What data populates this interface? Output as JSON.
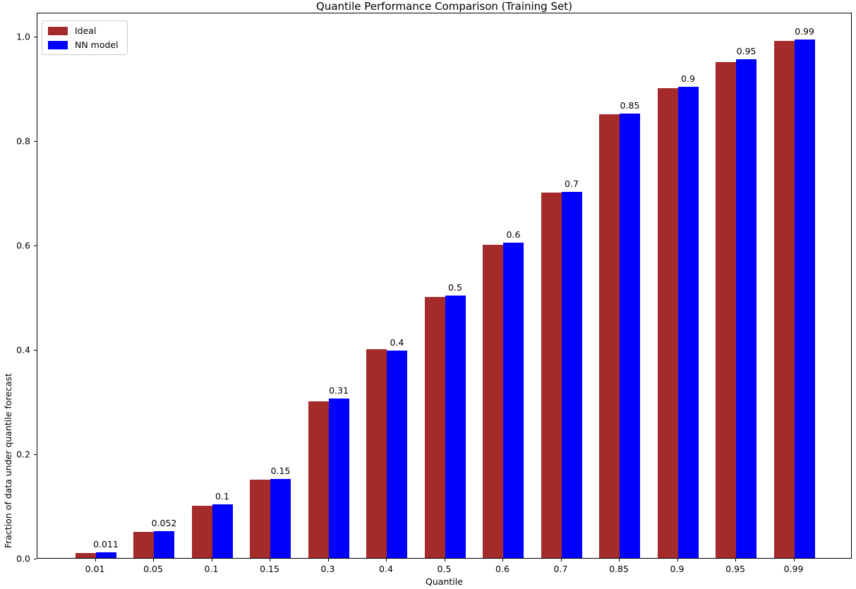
{
  "chart_data": {
    "type": "bar",
    "title": "Quantile Performance Comparison (Training Set)",
    "xlabel": "Quantile",
    "ylabel": "Fraction of data under quantile forecast",
    "categories": [
      "0.01",
      "0.05",
      "0.1",
      "0.15",
      "0.3",
      "0.4",
      "0.5",
      "0.6",
      "0.7",
      "0.85",
      "0.9",
      "0.95",
      "0.99"
    ],
    "series": [
      {
        "name": "Ideal",
        "color": "#A52A2A",
        "values": [
          0.01,
          0.05,
          0.1,
          0.15,
          0.3,
          0.4,
          0.5,
          0.6,
          0.7,
          0.85,
          0.9,
          0.95,
          0.99
        ]
      },
      {
        "name": "NN model",
        "color": "#0000FF",
        "values": [
          0.011,
          0.052,
          0.103,
          0.152,
          0.306,
          0.397,
          0.503,
          0.604,
          0.701,
          0.852,
          0.903,
          0.955,
          0.993
        ],
        "bar_labels": [
          "0.011",
          "0.052",
          "0.1",
          "0.15",
          "0.31",
          "0.4",
          "0.5",
          "0.6",
          "0.7",
          "0.85",
          "0.9",
          "0.95",
          "0.99"
        ]
      }
    ],
    "yticks": [
      "0.0",
      "0.2",
      "0.4",
      "0.6",
      "0.8",
      "1.0"
    ],
    "ylim": [
      0,
      1.046
    ],
    "xlim_units": "categorical",
    "grid": false,
    "legend": {
      "position": "upper-left",
      "entries": [
        "Ideal",
        "NN model"
      ]
    },
    "background_color": "#ffffff",
    "spine_color": "#000000"
  }
}
